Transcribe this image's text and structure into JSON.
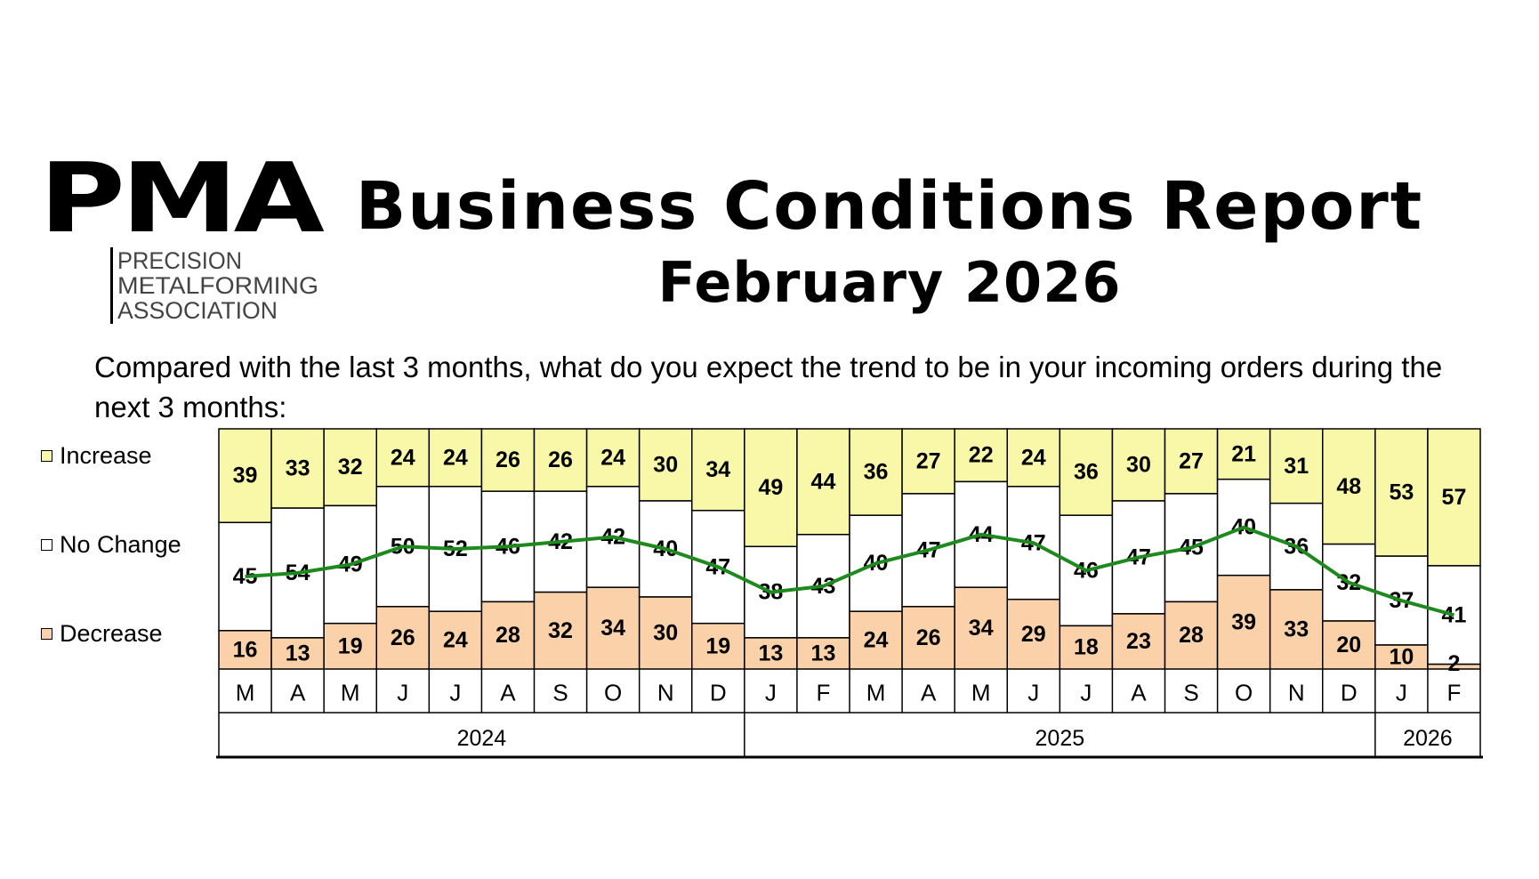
{
  "header": {
    "title": "Business Conditions Report",
    "subtitle": "February 2026"
  },
  "logo": {
    "mark": "PMA",
    "lines": [
      "PRECISION",
      "METALFORMING",
      "ASSOCIATION"
    ]
  },
  "question": "Compared with the last 3 months, what do you expect the trend to be in your incoming orders during the next 3 months:",
  "legend": {
    "increase": "Increase",
    "no_change": "No Change",
    "decrease": "Decrease"
  },
  "colors": {
    "increase": "#F8F8A8",
    "no_change": "#FFFFFF",
    "decrease": "#FAD1A8",
    "line": "#1E8A1E"
  },
  "chart_data": {
    "type": "bar",
    "stacked": true,
    "normalized": true,
    "categories": [
      "M",
      "A",
      "M",
      "J",
      "J",
      "A",
      "S",
      "O",
      "N",
      "D",
      "J",
      "F",
      "M",
      "A",
      "M",
      "J",
      "J",
      "A",
      "S",
      "O",
      "N",
      "D",
      "J",
      "F"
    ],
    "year_groups": [
      {
        "label": "2024",
        "span": 10
      },
      {
        "label": "2025",
        "span": 12
      },
      {
        "label": "2026",
        "span": 2
      }
    ],
    "series": [
      {
        "name": "Increase",
        "values": [
          39,
          33,
          32,
          24,
          24,
          26,
          26,
          24,
          30,
          34,
          49,
          44,
          36,
          27,
          22,
          24,
          36,
          30,
          27,
          21,
          31,
          48,
          53,
          57
        ]
      },
      {
        "name": "No Change",
        "values": [
          45,
          54,
          49,
          50,
          52,
          46,
          42,
          42,
          40,
          47,
          38,
          43,
          40,
          47,
          44,
          47,
          46,
          47,
          45,
          40,
          36,
          32,
          37,
          41
        ]
      },
      {
        "name": "Decrease",
        "values": [
          16,
          13,
          19,
          26,
          24,
          28,
          32,
          34,
          30,
          19,
          13,
          13,
          24,
          26,
          34,
          29,
          18,
          23,
          28,
          39,
          33,
          20,
          10,
          2
        ]
      }
    ],
    "trend_line": "Increase plus half of No Change"
  }
}
